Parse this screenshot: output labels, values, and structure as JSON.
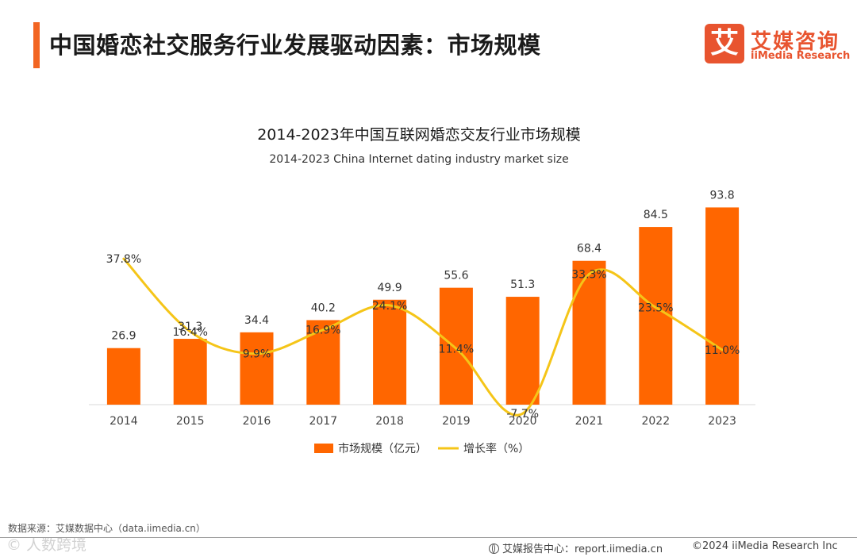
{
  "header": {
    "title": "中国婚恋社交服务行业发展驱动因素：市场规模"
  },
  "logo": {
    "mark": "艾",
    "name_cn": "艾媒咨询",
    "name_en": "iiMedia Research"
  },
  "chart_data": {
    "type": "bar",
    "title": "2014-2023年中国互联网婚恋交友行业市场规模",
    "subtitle": "2014-2023 China Internet dating industry market size",
    "categories": [
      "2014",
      "2015",
      "2016",
      "2017",
      "2018",
      "2019",
      "2020",
      "2021",
      "2022",
      "2023"
    ],
    "series": [
      {
        "name": "市场规模（亿元）",
        "type": "bar",
        "color": "#ff6600",
        "values": [
          26.9,
          31.3,
          34.4,
          40.2,
          49.9,
          55.6,
          51.3,
          68.4,
          84.5,
          93.8
        ],
        "labels": [
          "26.9",
          "31.3",
          "34.4",
          "40.2",
          "49.9",
          "55.6",
          "51.3",
          "68.4",
          "84.5",
          "93.8"
        ]
      },
      {
        "name": "增长率（%）",
        "type": "line",
        "color": "#f5c518",
        "values": [
          37.8,
          16.4,
          9.9,
          16.9,
          24.1,
          11.4,
          -7.7,
          33.3,
          23.5,
          11.0
        ],
        "labels": [
          "37.8%",
          "16.4%",
          "9.9%",
          "16.9%",
          "24.1%",
          "11.4%",
          "-7.7%",
          "33.3%",
          "23.5%",
          "11.0%"
        ]
      }
    ],
    "ylim_bar": [
      0,
      100
    ],
    "ylim_line": [
      -10,
      60
    ],
    "grid": false,
    "legend": "bottom-center"
  },
  "footer": {
    "source": "数据来源：艾媒数据中心（data.iimedia.cn）",
    "watermark": "© 人数跨境",
    "report_site": "艾媒报告中心：report.iimedia.cn",
    "copyright": "©2024  iiMedia Research Inc"
  }
}
